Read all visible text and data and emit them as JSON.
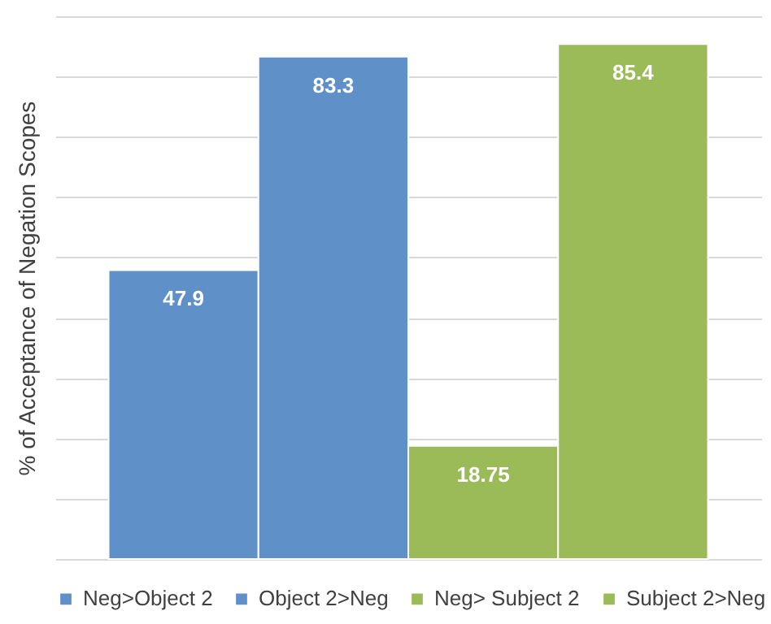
{
  "chart_data": {
    "type": "bar",
    "ylabel": "% of Acceptance of Negation Scopes",
    "categories": [
      null
    ],
    "series": [
      {
        "name": "Neg>Object 2",
        "color": "#6090c8",
        "values": [
          47.9
        ]
      },
      {
        "name": "Object 2>Neg",
        "color": "#6090c8",
        "values": [
          83.3
        ]
      },
      {
        "name": "Neg> Subject 2",
        "color": "#9bbb59",
        "values": [
          18.75
        ]
      },
      {
        "name": "Subject 2>Neg",
        "color": "#9bbb59",
        "values": [
          85.4
        ]
      }
    ],
    "grid": "y",
    "tick_labels": false,
    "data_labels": true,
    "legend": "bottom"
  }
}
